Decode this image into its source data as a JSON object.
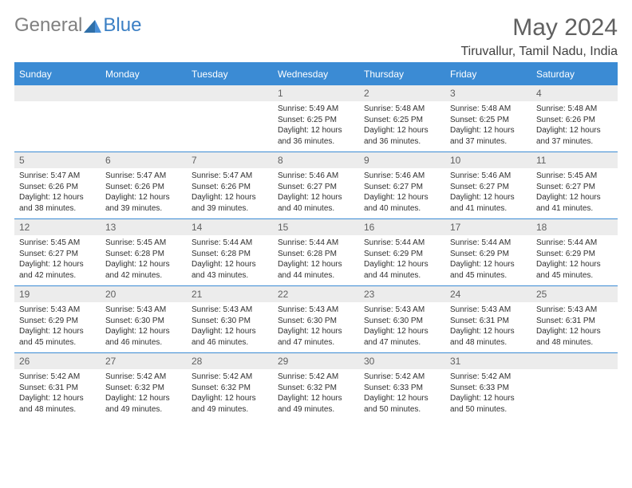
{
  "logo": {
    "general": "General",
    "blue": "Blue"
  },
  "title": "May 2024",
  "location": "Tiruvallur, Tamil Nadu, India",
  "day_headers": [
    "Sunday",
    "Monday",
    "Tuesday",
    "Wednesday",
    "Thursday",
    "Friday",
    "Saturday"
  ],
  "colors": {
    "header_bg": "#3b8bd4",
    "header_text": "#ffffff",
    "daynum_bg": "#ececec",
    "daynum_text": "#606060",
    "cell_text": "#303030",
    "border": "#3b8bd4",
    "title_text": "#606060",
    "logo_gray": "#808080",
    "logo_blue": "#3b7fc4"
  },
  "fonts": {
    "title_size": 30,
    "location_size": 16,
    "header_size": 12,
    "daynum_size": 12,
    "cell_size": 10
  },
  "weeks": [
    {
      "nums": [
        "",
        "",
        "",
        "1",
        "2",
        "3",
        "4"
      ],
      "details": [
        null,
        null,
        null,
        {
          "sunrise": "Sunrise: 5:49 AM",
          "sunset": "Sunset: 6:25 PM",
          "daylight1": "Daylight: 12 hours",
          "daylight2": "and 36 minutes."
        },
        {
          "sunrise": "Sunrise: 5:48 AM",
          "sunset": "Sunset: 6:25 PM",
          "daylight1": "Daylight: 12 hours",
          "daylight2": "and 36 minutes."
        },
        {
          "sunrise": "Sunrise: 5:48 AM",
          "sunset": "Sunset: 6:25 PM",
          "daylight1": "Daylight: 12 hours",
          "daylight2": "and 37 minutes."
        },
        {
          "sunrise": "Sunrise: 5:48 AM",
          "sunset": "Sunset: 6:26 PM",
          "daylight1": "Daylight: 12 hours",
          "daylight2": "and 37 minutes."
        }
      ]
    },
    {
      "nums": [
        "5",
        "6",
        "7",
        "8",
        "9",
        "10",
        "11"
      ],
      "details": [
        {
          "sunrise": "Sunrise: 5:47 AM",
          "sunset": "Sunset: 6:26 PM",
          "daylight1": "Daylight: 12 hours",
          "daylight2": "and 38 minutes."
        },
        {
          "sunrise": "Sunrise: 5:47 AM",
          "sunset": "Sunset: 6:26 PM",
          "daylight1": "Daylight: 12 hours",
          "daylight2": "and 39 minutes."
        },
        {
          "sunrise": "Sunrise: 5:47 AM",
          "sunset": "Sunset: 6:26 PM",
          "daylight1": "Daylight: 12 hours",
          "daylight2": "and 39 minutes."
        },
        {
          "sunrise": "Sunrise: 5:46 AM",
          "sunset": "Sunset: 6:27 PM",
          "daylight1": "Daylight: 12 hours",
          "daylight2": "and 40 minutes."
        },
        {
          "sunrise": "Sunrise: 5:46 AM",
          "sunset": "Sunset: 6:27 PM",
          "daylight1": "Daylight: 12 hours",
          "daylight2": "and 40 minutes."
        },
        {
          "sunrise": "Sunrise: 5:46 AM",
          "sunset": "Sunset: 6:27 PM",
          "daylight1": "Daylight: 12 hours",
          "daylight2": "and 41 minutes."
        },
        {
          "sunrise": "Sunrise: 5:45 AM",
          "sunset": "Sunset: 6:27 PM",
          "daylight1": "Daylight: 12 hours",
          "daylight2": "and 41 minutes."
        }
      ]
    },
    {
      "nums": [
        "12",
        "13",
        "14",
        "15",
        "16",
        "17",
        "18"
      ],
      "details": [
        {
          "sunrise": "Sunrise: 5:45 AM",
          "sunset": "Sunset: 6:27 PM",
          "daylight1": "Daylight: 12 hours",
          "daylight2": "and 42 minutes."
        },
        {
          "sunrise": "Sunrise: 5:45 AM",
          "sunset": "Sunset: 6:28 PM",
          "daylight1": "Daylight: 12 hours",
          "daylight2": "and 42 minutes."
        },
        {
          "sunrise": "Sunrise: 5:44 AM",
          "sunset": "Sunset: 6:28 PM",
          "daylight1": "Daylight: 12 hours",
          "daylight2": "and 43 minutes."
        },
        {
          "sunrise": "Sunrise: 5:44 AM",
          "sunset": "Sunset: 6:28 PM",
          "daylight1": "Daylight: 12 hours",
          "daylight2": "and 44 minutes."
        },
        {
          "sunrise": "Sunrise: 5:44 AM",
          "sunset": "Sunset: 6:29 PM",
          "daylight1": "Daylight: 12 hours",
          "daylight2": "and 44 minutes."
        },
        {
          "sunrise": "Sunrise: 5:44 AM",
          "sunset": "Sunset: 6:29 PM",
          "daylight1": "Daylight: 12 hours",
          "daylight2": "and 45 minutes."
        },
        {
          "sunrise": "Sunrise: 5:44 AM",
          "sunset": "Sunset: 6:29 PM",
          "daylight1": "Daylight: 12 hours",
          "daylight2": "and 45 minutes."
        }
      ]
    },
    {
      "nums": [
        "19",
        "20",
        "21",
        "22",
        "23",
        "24",
        "25"
      ],
      "details": [
        {
          "sunrise": "Sunrise: 5:43 AM",
          "sunset": "Sunset: 6:29 PM",
          "daylight1": "Daylight: 12 hours",
          "daylight2": "and 45 minutes."
        },
        {
          "sunrise": "Sunrise: 5:43 AM",
          "sunset": "Sunset: 6:30 PM",
          "daylight1": "Daylight: 12 hours",
          "daylight2": "and 46 minutes."
        },
        {
          "sunrise": "Sunrise: 5:43 AM",
          "sunset": "Sunset: 6:30 PM",
          "daylight1": "Daylight: 12 hours",
          "daylight2": "and 46 minutes."
        },
        {
          "sunrise": "Sunrise: 5:43 AM",
          "sunset": "Sunset: 6:30 PM",
          "daylight1": "Daylight: 12 hours",
          "daylight2": "and 47 minutes."
        },
        {
          "sunrise": "Sunrise: 5:43 AM",
          "sunset": "Sunset: 6:30 PM",
          "daylight1": "Daylight: 12 hours",
          "daylight2": "and 47 minutes."
        },
        {
          "sunrise": "Sunrise: 5:43 AM",
          "sunset": "Sunset: 6:31 PM",
          "daylight1": "Daylight: 12 hours",
          "daylight2": "and 48 minutes."
        },
        {
          "sunrise": "Sunrise: 5:43 AM",
          "sunset": "Sunset: 6:31 PM",
          "daylight1": "Daylight: 12 hours",
          "daylight2": "and 48 minutes."
        }
      ]
    },
    {
      "nums": [
        "26",
        "27",
        "28",
        "29",
        "30",
        "31",
        ""
      ],
      "details": [
        {
          "sunrise": "Sunrise: 5:42 AM",
          "sunset": "Sunset: 6:31 PM",
          "daylight1": "Daylight: 12 hours",
          "daylight2": "and 48 minutes."
        },
        {
          "sunrise": "Sunrise: 5:42 AM",
          "sunset": "Sunset: 6:32 PM",
          "daylight1": "Daylight: 12 hours",
          "daylight2": "and 49 minutes."
        },
        {
          "sunrise": "Sunrise: 5:42 AM",
          "sunset": "Sunset: 6:32 PM",
          "daylight1": "Daylight: 12 hours",
          "daylight2": "and 49 minutes."
        },
        {
          "sunrise": "Sunrise: 5:42 AM",
          "sunset": "Sunset: 6:32 PM",
          "daylight1": "Daylight: 12 hours",
          "daylight2": "and 49 minutes."
        },
        {
          "sunrise": "Sunrise: 5:42 AM",
          "sunset": "Sunset: 6:33 PM",
          "daylight1": "Daylight: 12 hours",
          "daylight2": "and 50 minutes."
        },
        {
          "sunrise": "Sunrise: 5:42 AM",
          "sunset": "Sunset: 6:33 PM",
          "daylight1": "Daylight: 12 hours",
          "daylight2": "and 50 minutes."
        },
        null
      ]
    }
  ]
}
